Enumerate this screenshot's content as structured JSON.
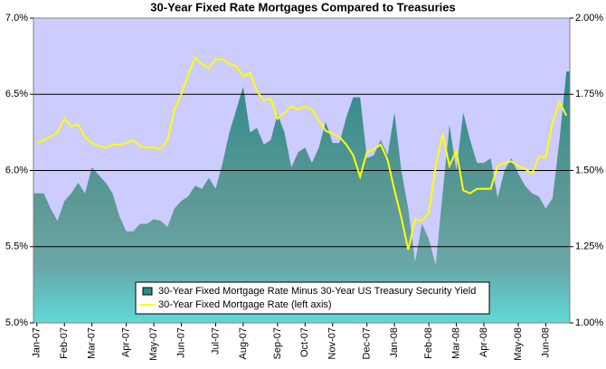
{
  "chart_data": {
    "type": "area_line",
    "title": "30-Year Fixed Rate Mortgages Compared to Treasuries",
    "categories": [
      "Jan-07",
      null,
      null,
      null,
      "Feb-07",
      null,
      null,
      null,
      "Mar-07",
      null,
      null,
      null,
      null,
      "Apr-07",
      null,
      null,
      null,
      "May-07",
      null,
      null,
      null,
      "Jun-07",
      null,
      null,
      null,
      null,
      "Jul-07",
      null,
      null,
      null,
      "Aug-07",
      null,
      null,
      null,
      null,
      "Sep-07",
      null,
      null,
      null,
      "Oct-07",
      null,
      null,
      null,
      "Nov-07",
      null,
      null,
      null,
      null,
      "Dec-07",
      null,
      null,
      null,
      "Jan-08",
      null,
      null,
      null,
      null,
      "Feb-08",
      null,
      null,
      null,
      "Mar-08",
      null,
      null,
      null,
      "Apr-08",
      null,
      null,
      null,
      null,
      "May-08",
      null,
      null,
      null,
      "Jun-08",
      null,
      null,
      null
    ],
    "series": [
      {
        "name": "30-Year Fixed Mortgage Rate Minus 30-Year US Treasury Security Yield",
        "color": "#2e8b8b",
        "axis": "y2",
        "values": [
          1.425,
          1.425,
          1.375,
          1.335,
          1.4,
          1.425,
          1.46,
          1.425,
          1.51,
          1.485,
          1.46,
          1.425,
          1.35,
          1.3,
          1.3,
          1.325,
          1.325,
          1.34,
          1.335,
          1.315,
          1.375,
          1.4,
          1.415,
          1.45,
          1.44,
          1.475,
          1.44,
          1.525,
          1.625,
          1.7,
          1.775,
          1.625,
          1.64,
          1.585,
          1.6,
          1.685,
          1.625,
          1.51,
          1.56,
          1.575,
          1.525,
          1.575,
          1.66,
          1.59,
          1.59,
          1.675,
          1.74,
          1.74,
          1.54,
          1.55,
          1.6,
          1.55,
          1.69,
          1.5,
          1.375,
          1.2,
          1.325,
          1.275,
          1.19,
          1.425,
          1.65,
          1.5,
          1.69,
          1.6,
          1.525,
          1.525,
          1.54,
          1.41,
          1.5,
          1.54,
          1.49,
          1.45,
          1.425,
          1.415,
          1.375,
          1.41,
          1.6,
          1.825
        ]
      },
      {
        "name": "30-Year Fixed Mortgage Rate (left axis)",
        "color": "#ffff00",
        "axis": "y",
        "values": [
          6.18,
          6.2,
          6.22,
          6.25,
          6.34,
          6.29,
          6.3,
          6.22,
          6.18,
          6.16,
          6.15,
          6.17,
          6.17,
          6.18,
          6.2,
          6.16,
          6.15,
          6.15,
          6.14,
          6.2,
          6.4,
          6.5,
          6.63,
          6.74,
          6.7,
          6.67,
          6.73,
          6.73,
          6.7,
          6.68,
          6.62,
          6.64,
          6.52,
          6.46,
          6.47,
          6.34,
          6.38,
          6.42,
          6.4,
          6.42,
          6.4,
          6.33,
          6.26,
          6.24,
          6.22,
          6.17,
          6.1,
          5.96,
          6.12,
          6.14,
          6.17,
          6.07,
          5.87,
          5.69,
          5.48,
          5.68,
          5.67,
          5.72,
          6.03,
          6.24,
          6.03,
          6.13,
          5.87,
          5.85,
          5.88,
          5.88,
          5.88,
          6.03,
          6.05,
          6.06,
          6.03,
          6.01,
          5.98,
          6.09,
          6.09,
          6.32,
          6.45,
          6.36
        ]
      }
    ],
    "ylim": [
      5,
      7
    ],
    "yticks": [
      {
        "value": 5,
        "label": "5.0%"
      },
      {
        "value": 5.5,
        "label": "5.5%"
      },
      {
        "value": 6,
        "label": "6.0%"
      },
      {
        "value": 6.5,
        "label": "6.5%"
      },
      {
        "value": 7,
        "label": "7.0%"
      }
    ],
    "y2lim": [
      1,
      2
    ],
    "y2ticks": [
      {
        "value": 1,
        "label": "1.00%"
      },
      {
        "value": 1.25,
        "label": "1.25%"
      },
      {
        "value": 1.5,
        "label": "1.50%"
      },
      {
        "value": 1.75,
        "label": "1.75%"
      },
      {
        "value": 2,
        "label": "2.00%"
      }
    ],
    "grid": true,
    "legend": "bottom"
  }
}
